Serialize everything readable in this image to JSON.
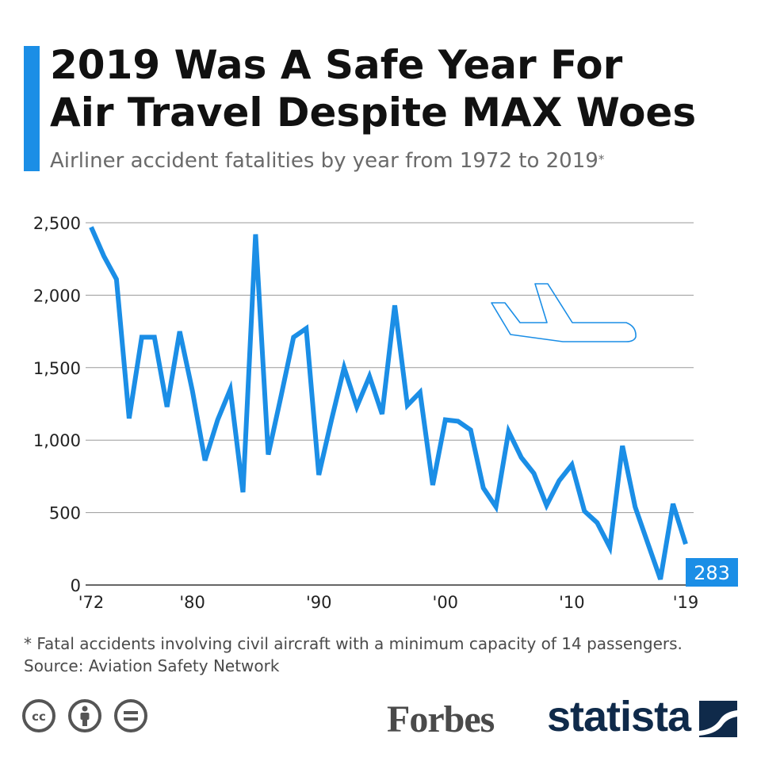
{
  "header": {
    "title_line1": "2019 Was A Safe Year For",
    "title_line2": "Air Travel Despite MAX Woes",
    "subtitle": "Airliner accident fatalities by year from 1972 to 2019",
    "subtitle_mark": "*"
  },
  "chart_data": {
    "type": "line",
    "x": [
      1972,
      1973,
      1974,
      1975,
      1976,
      1977,
      1978,
      1979,
      1980,
      1981,
      1982,
      1983,
      1984,
      1985,
      1986,
      1987,
      1988,
      1989,
      1990,
      1991,
      1992,
      1993,
      1994,
      1995,
      1996,
      1997,
      1998,
      1999,
      2000,
      2001,
      2002,
      2003,
      2004,
      2005,
      2006,
      2007,
      2008,
      2009,
      2010,
      2011,
      2012,
      2013,
      2014,
      2015,
      2016,
      2017,
      2018,
      2019
    ],
    "series": [
      {
        "values": [
          2470,
          2270,
          2110,
          1150,
          1710,
          1710,
          1230,
          1750,
          1340,
          860,
          1140,
          1350,
          640,
          2420,
          900,
          1300,
          1710,
          1770,
          760,
          1140,
          1500,
          1230,
          1440,
          1180,
          1930,
          1240,
          1330,
          690,
          1140,
          1130,
          1070,
          670,
          540,
          1060,
          880,
          770,
          550,
          720,
          830,
          510,
          430,
          260,
          960,
          540,
          290,
          40,
          560,
          283
        ]
      }
    ],
    "xticks": [
      "'72",
      "'80",
      "'90",
      "'00",
      "'10",
      "'19"
    ],
    "xtick_years": [
      1972,
      1980,
      1990,
      2000,
      2010,
      2019
    ],
    "yticks": [
      "0",
      "500",
      "1,000",
      "1,500",
      "2,000",
      "2,500"
    ],
    "ytick_values": [
      0,
      500,
      1000,
      1500,
      2000,
      2500
    ],
    "ylim": [
      0,
      2500
    ],
    "xlim": [
      1972,
      2019
    ],
    "last_label": "283",
    "grid": true,
    "line_color": "#1b8ee6",
    "grid_color": "#9a9a9a",
    "annotation_icon": "airplane-icon"
  },
  "footer": {
    "footnote": "* Fatal accidents involving civil aircraft with a minimum capacity of 14 passengers.",
    "source": "Source: Aviation Safety Network",
    "license_icons": [
      "cc-icon",
      "attribution-icon",
      "no-derivatives-icon"
    ],
    "partner_logo": "Forbes",
    "brand_logo": "statista"
  },
  "colors": {
    "accent": "#1b8ee6",
    "brand_dark": "#0f2a4a"
  }
}
